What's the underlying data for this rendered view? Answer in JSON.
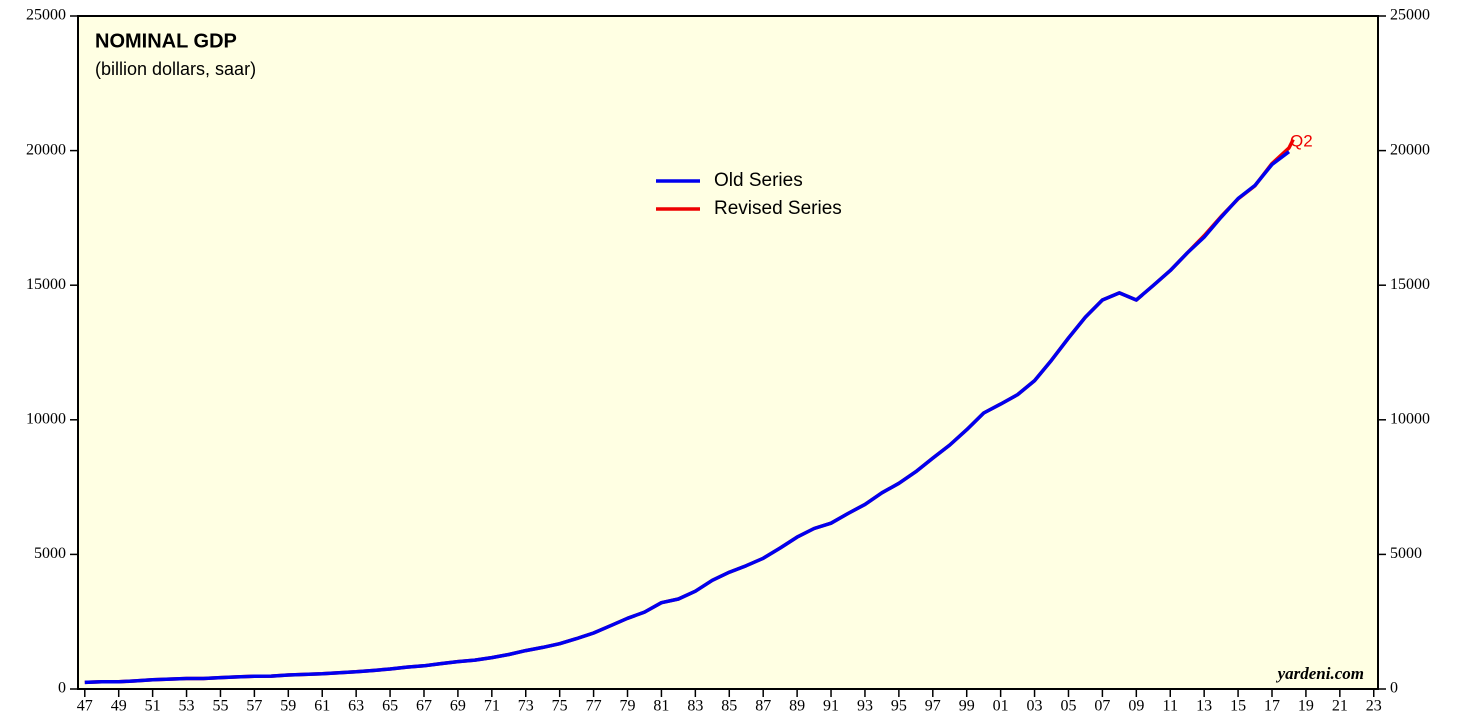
{
  "chart_data": {
    "type": "line",
    "title": "NOMINAL GDP",
    "subtitle": "(billion dollars, saar)",
    "annotations": [
      "Q2",
      "yardeni.com"
    ],
    "x": [
      1947,
      1948,
      1949,
      1950,
      1951,
      1952,
      1953,
      1954,
      1955,
      1956,
      1957,
      1958,
      1959,
      1960,
      1961,
      1962,
      1963,
      1964,
      1965,
      1966,
      1967,
      1968,
      1969,
      1970,
      1971,
      1972,
      1973,
      1974,
      1975,
      1976,
      1977,
      1978,
      1979,
      1980,
      1981,
      1982,
      1983,
      1984,
      1985,
      1986,
      1987,
      1988,
      1989,
      1990,
      1991,
      1992,
      1993,
      1994,
      1995,
      1996,
      1997,
      1998,
      1999,
      2000,
      2001,
      2002,
      2003,
      2004,
      2005,
      2006,
      2007,
      2008,
      2009,
      2010,
      2011,
      2012,
      2013,
      2014,
      2015,
      2016,
      2017,
      2018,
      2018.25
    ],
    "series": [
      {
        "name": "Old Series",
        "color": "#0000ee",
        "values": [
          244,
          270,
          268,
          300,
          347,
          367,
          389,
          390,
          425,
          449,
          474,
          481,
          521,
          543,
          563,
          605,
          638,
          686,
          743,
          815,
          862,
          943,
          1019,
          1073,
          1165,
          1280,
          1425,
          1545,
          1684,
          1873,
          2082,
          2352,
          2627,
          2857,
          3207,
          3343,
          3634,
          4037,
          4339,
          4580,
          4855,
          5236,
          5641,
          5963,
          6158,
          6520,
          6858,
          7287,
          7640,
          8073,
          8578,
          9063,
          9631,
          10252,
          10582,
          10936,
          11458,
          12214,
          13037,
          13815,
          14452,
          14713,
          14449,
          14992,
          15543,
          16197,
          16785,
          17522,
          18219,
          18707,
          19485,
          19960,
          null
        ]
      },
      {
        "name": "Revised Series",
        "color": "#ee0000",
        "values": [
          244,
          270,
          268,
          300,
          347,
          367,
          389,
          390,
          425,
          449,
          474,
          481,
          521,
          543,
          563,
          605,
          638,
          686,
          743,
          815,
          862,
          943,
          1019,
          1073,
          1165,
          1280,
          1425,
          1545,
          1684,
          1873,
          2082,
          2352,
          2627,
          2857,
          3207,
          3343,
          3634,
          4037,
          4339,
          4580,
          4855,
          5236,
          5641,
          5963,
          6158,
          6520,
          6858,
          7287,
          7640,
          8073,
          8578,
          9063,
          9631,
          10252,
          10582,
          10936,
          11458,
          12214,
          13037,
          13815,
          14452,
          14713,
          14449,
          14992,
          15543,
          16197,
          16843,
          17551,
          18206,
          18695,
          19519,
          20100,
          20412
        ]
      }
    ],
    "xlim": [
      1946.6,
      2023.25
    ],
    "xticks": [
      {
        "value": 1947,
        "label": "47"
      },
      {
        "value": 1949,
        "label": "49"
      },
      {
        "value": 1951,
        "label": "51"
      },
      {
        "value": 1953,
        "label": "53"
      },
      {
        "value": 1955,
        "label": "55"
      },
      {
        "value": 1957,
        "label": "57"
      },
      {
        "value": 1959,
        "label": "59"
      },
      {
        "value": 1961,
        "label": "61"
      },
      {
        "value": 1963,
        "label": "63"
      },
      {
        "value": 1965,
        "label": "65"
      },
      {
        "value": 1967,
        "label": "67"
      },
      {
        "value": 1969,
        "label": "69"
      },
      {
        "value": 1971,
        "label": "71"
      },
      {
        "value": 1973,
        "label": "73"
      },
      {
        "value": 1975,
        "label": "75"
      },
      {
        "value": 1977,
        "label": "77"
      },
      {
        "value": 1979,
        "label": "79"
      },
      {
        "value": 1981,
        "label": "81"
      },
      {
        "value": 1983,
        "label": "83"
      },
      {
        "value": 1985,
        "label": "85"
      },
      {
        "value": 1987,
        "label": "87"
      },
      {
        "value": 1989,
        "label": "89"
      },
      {
        "value": 1991,
        "label": "91"
      },
      {
        "value": 1993,
        "label": "93"
      },
      {
        "value": 1995,
        "label": "95"
      },
      {
        "value": 1997,
        "label": "97"
      },
      {
        "value": 1999,
        "label": "99"
      },
      {
        "value": 2001,
        "label": "01"
      },
      {
        "value": 2003,
        "label": "03"
      },
      {
        "value": 2005,
        "label": "05"
      },
      {
        "value": 2007,
        "label": "07"
      },
      {
        "value": 2009,
        "label": "09"
      },
      {
        "value": 2011,
        "label": "11"
      },
      {
        "value": 2013,
        "label": "13"
      },
      {
        "value": 2015,
        "label": "15"
      },
      {
        "value": 2017,
        "label": "17"
      },
      {
        "value": 2019,
        "label": "19"
      },
      {
        "value": 2021,
        "label": "21"
      },
      {
        "value": 2023,
        "label": "23"
      }
    ],
    "ylim": [
      0,
      25000
    ],
    "yticks": [
      0,
      5000,
      10000,
      15000,
      20000,
      25000
    ],
    "y2lim": [
      0,
      25000
    ],
    "y2ticks": [
      0,
      5000,
      10000,
      15000,
      20000,
      25000
    ],
    "background": "#ffffe3",
    "grid": false
  }
}
